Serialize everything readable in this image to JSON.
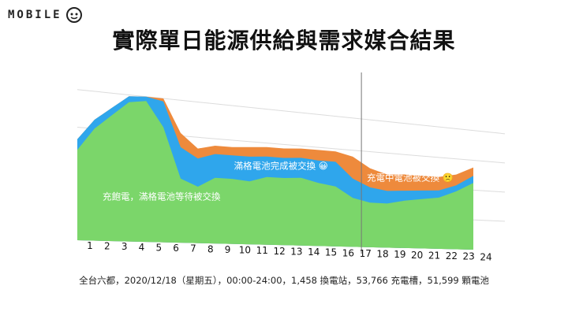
{
  "logo": {
    "text": "MOBILE",
    "icon": "mobile01-logo-icon"
  },
  "title": "實際單日能源供給與需求媒合結果",
  "caption": "全台六都，2020/12/18（星期五），00:00-24:00，1,458 換電站，53,766 充電槽，51,599 顆電池",
  "colors": {
    "green": "#7bd66a",
    "blue": "#2fa6ec",
    "orange": "#ee8a3c",
    "grid": "#dcdcdc"
  },
  "chart_data": {
    "type": "area",
    "stacked": true,
    "x": [
      "1",
      "2",
      "3",
      "4",
      "5",
      "6",
      "7",
      "8",
      "9",
      "10",
      "11",
      "12",
      "13",
      "14",
      "15",
      "16",
      "17",
      "18",
      "19",
      "20",
      "21",
      "22",
      "23",
      "24"
    ],
    "series": [
      {
        "name": "充飽電，滿格電池等待被交換",
        "color": "#7bd66a",
        "values": [
          60,
          75,
          85,
          95,
          97,
          80,
          45,
          40,
          47,
          47,
          46,
          50,
          50,
          51,
          48,
          46,
          38,
          35,
          35,
          38,
          40,
          42,
          48,
          56
        ]
      },
      {
        "name": "滿格電池完成被交換",
        "color": "#2fa6ec",
        "values": [
          7,
          6,
          5,
          4,
          3,
          18,
          22,
          20,
          17,
          17,
          18,
          15,
          15,
          15,
          17,
          19,
          15,
          12,
          10,
          8,
          7,
          6,
          5,
          6
        ]
      },
      {
        "name": "充電中電池被交換",
        "color": "#ee8a3c",
        "values": [
          0,
          0,
          0,
          0,
          0,
          2,
          10,
          7,
          6,
          6,
          7,
          7,
          7,
          7,
          8,
          8,
          17,
          15,
          13,
          13,
          12,
          11,
          9,
          7
        ]
      }
    ],
    "annotations": [
      {
        "text": "充飽電，滿格電池等待被交換",
        "series": 0
      },
      {
        "text": "滿格電池完成被交換",
        "series": 1,
        "emoji": "😀"
      },
      {
        "text": "充電中電池被交換",
        "series": 2,
        "emoji": "🙁"
      }
    ],
    "ylim": [
      0,
      115
    ],
    "grid": true,
    "divider_after": "17"
  }
}
